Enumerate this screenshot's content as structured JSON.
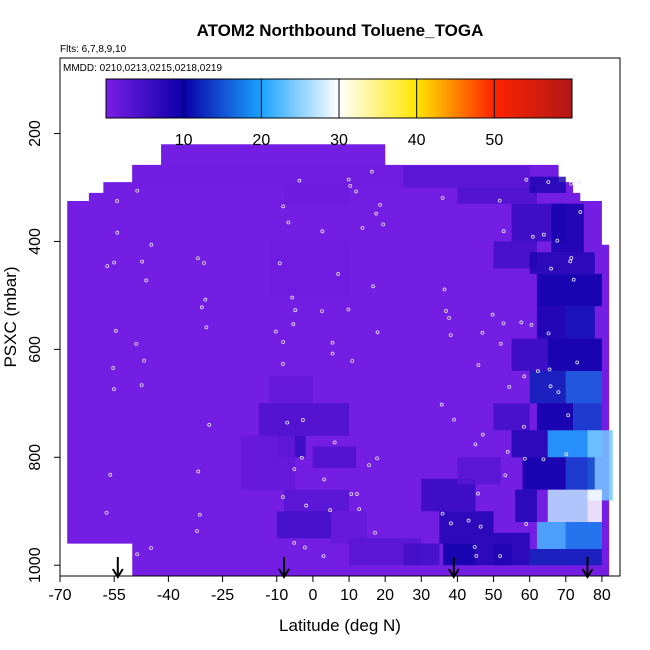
{
  "chart_data": {
    "type": "heatmap",
    "title": "ATOM2 Northbound Toluene_TOGA",
    "flights_note": "Flts: 6,7,8,9,10",
    "dates_note": "MMDD: 0210,0213,0215,0218,0219",
    "xlabel": "Latitude (deg N)",
    "ylabel": "PSXC (mbar)",
    "xlim": [
      -70,
      85
    ],
    "ylim": [
      1020,
      60
    ],
    "x_ticks": [
      -70,
      -55,
      -40,
      -25,
      -10,
      0,
      10,
      20,
      30,
      40,
      50,
      60,
      70,
      80
    ],
    "x_tick_labels": [
      "-70",
      "-55",
      "-40",
      "-25",
      "-10",
      "0",
      "10",
      "20",
      "30",
      "40",
      "50",
      "60",
      "70",
      "80"
    ],
    "y_ticks": [
      200,
      400,
      600,
      800,
      1000
    ],
    "y_tick_labels": [
      "200",
      "400",
      "600",
      "800",
      "1000"
    ],
    "colorbar": {
      "min": 0,
      "max": 60,
      "ticks": [
        10,
        20,
        30,
        40,
        50
      ],
      "tick_labels": [
        "10",
        "20",
        "30",
        "40",
        "50"
      ],
      "colors": [
        "#7a1ee6",
        "#0a00a8",
        "#1aa3ff",
        "#ffffff",
        "#ffe600",
        "#ff2200",
        "#b01818"
      ]
    },
    "background_value": 0.5,
    "arrow_latitudes": [
      -54,
      -8,
      39,
      76
    ],
    "cells": [
      {
        "lat": [
          -42,
          20
        ],
        "p": [
          220,
          260
        ],
        "v": 0.5
      },
      {
        "lat": [
          -50,
          68
        ],
        "p": [
          260,
          300
        ],
        "v": 0.8
      },
      {
        "lat": [
          -8,
          10
        ],
        "p": [
          300,
          330
        ],
        "v": 1.2
      },
      {
        "lat": [
          25,
          60
        ],
        "p": [
          260,
          300
        ],
        "v": 3
      },
      {
        "lat": [
          40,
          62
        ],
        "p": [
          300,
          330
        ],
        "v": 4
      },
      {
        "lat": [
          55,
          70
        ],
        "p": [
          330,
          400
        ],
        "v": 6
      },
      {
        "lat": [
          60,
          70
        ],
        "p": [
          280,
          310
        ],
        "v": 8
      },
      {
        "lat": [
          66,
          75
        ],
        "p": [
          330,
          420
        ],
        "v": 9
      },
      {
        "lat": [
          50,
          62
        ],
        "p": [
          400,
          450
        ],
        "v": 5
      },
      {
        "lat": [
          60,
          78
        ],
        "p": [
          420,
          460
        ],
        "v": 8
      },
      {
        "lat": [
          62,
          80
        ],
        "p": [
          460,
          520
        ],
        "v": 10
      },
      {
        "lat": [
          70,
          78
        ],
        "p": [
          520,
          580
        ],
        "v": 11
      },
      {
        "lat": [
          62,
          70
        ],
        "p": [
          520,
          580
        ],
        "v": 9
      },
      {
        "lat": [
          55,
          65
        ],
        "p": [
          580,
          640
        ],
        "v": 6
      },
      {
        "lat": [
          65,
          80
        ],
        "p": [
          580,
          640
        ],
        "v": 10
      },
      {
        "lat": [
          60,
          70
        ],
        "p": [
          640,
          700
        ],
        "v": 12
      },
      {
        "lat": [
          70,
          80
        ],
        "p": [
          640,
          700
        ],
        "v": 16
      },
      {
        "lat": [
          50,
          60
        ],
        "p": [
          700,
          750
        ],
        "v": 5
      },
      {
        "lat": [
          62,
          72
        ],
        "p": [
          700,
          750
        ],
        "v": 10
      },
      {
        "lat": [
          72,
          80
        ],
        "p": [
          700,
          750
        ],
        "v": 14
      },
      {
        "lat": [
          55,
          65
        ],
        "p": [
          750,
          800
        ],
        "v": 8
      },
      {
        "lat": [
          65,
          80
        ],
        "p": [
          750,
          800
        ],
        "v": 20
      },
      {
        "lat": [
          76,
          83
        ],
        "p": [
          750,
          880
        ],
        "v": 24
      },
      {
        "lat": [
          58,
          70
        ],
        "p": [
          800,
          860
        ],
        "v": 10
      },
      {
        "lat": [
          70,
          78
        ],
        "p": [
          800,
          860
        ],
        "v": 14
      },
      {
        "lat": [
          65,
          76
        ],
        "p": [
          860,
          920
        ],
        "v": 27
      },
      {
        "lat": [
          76,
          80
        ],
        "p": [
          860,
          920
        ],
        "v": 30
      },
      {
        "lat": [
          56,
          62
        ],
        "p": [
          860,
          920
        ],
        "v": 8
      },
      {
        "lat": [
          62,
          70
        ],
        "p": [
          920,
          970
        ],
        "v": 22
      },
      {
        "lat": [
          70,
          80
        ],
        "p": [
          920,
          970
        ],
        "v": 18
      },
      {
        "lat": [
          50,
          60
        ],
        "p": [
          940,
          1000
        ],
        "v": 8
      },
      {
        "lat": [
          60,
          80
        ],
        "p": [
          970,
          1000
        ],
        "v": 12
      },
      {
        "lat": [
          -12,
          10
        ],
        "p": [
          400,
          500
        ],
        "v": 0.9
      },
      {
        "lat": [
          -12,
          0
        ],
        "p": [
          650,
          700
        ],
        "v": 2
      },
      {
        "lat": [
          -15,
          10
        ],
        "p": [
          700,
          760
        ],
        "v": 4
      },
      {
        "lat": [
          -10,
          -2
        ],
        "p": [
          760,
          800
        ],
        "v": 6
      },
      {
        "lat": [
          0,
          12
        ],
        "p": [
          780,
          820
        ],
        "v": 4
      },
      {
        "lat": [
          -20,
          -5
        ],
        "p": [
          760,
          860
        ],
        "v": 2
      },
      {
        "lat": [
          -8,
          10
        ],
        "p": [
          860,
          900
        ],
        "v": 3
      },
      {
        "lat": [
          -10,
          5
        ],
        "p": [
          900,
          950
        ],
        "v": 5
      },
      {
        "lat": [
          5,
          15
        ],
        "p": [
          900,
          960
        ],
        "v": 2
      },
      {
        "lat": [
          10,
          30
        ],
        "p": [
          950,
          1000
        ],
        "v": 3
      },
      {
        "lat": [
          30,
          45
        ],
        "p": [
          840,
          900
        ],
        "v": 6
      },
      {
        "lat": [
          35,
          50
        ],
        "p": [
          900,
          960
        ],
        "v": 8
      },
      {
        "lat": [
          36,
          45
        ],
        "p": [
          960,
          1000
        ],
        "v": 10
      },
      {
        "lat": [
          25,
          35
        ],
        "p": [
          960,
          1000
        ],
        "v": 5
      },
      {
        "lat": [
          45,
          55
        ],
        "p": [
          960,
          1000
        ],
        "v": 8
      },
      {
        "lat": [
          40,
          52
        ],
        "p": [
          800,
          850
        ],
        "v": 3
      }
    ]
  }
}
